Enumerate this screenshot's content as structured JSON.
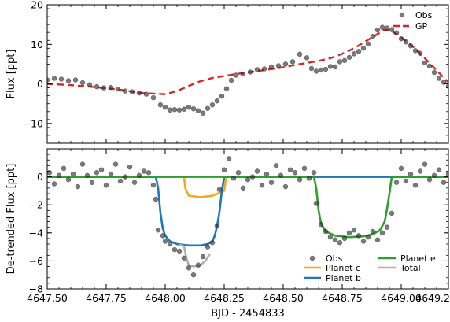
{
  "chart_data": [
    {
      "type": "scatter",
      "panel": "top",
      "title": "",
      "xlabel": "",
      "ylabel": "Flux [ppt]",
      "xlim": [
        4647.5,
        4649.2
      ],
      "ylim": [
        -15,
        20
      ],
      "yticks": [
        -10,
        0,
        10,
        20
      ],
      "ytick_labels": [
        "−10",
        "0",
        "10",
        "20"
      ],
      "legend": {
        "placement": "top-right",
        "entries": [
          "Obs",
          "GP"
        ]
      },
      "series": [
        {
          "name": "Obs",
          "kind": "points",
          "color": "#333333",
          "x": [
            4647.5,
            4647.53,
            4647.56,
            4647.59,
            4647.62,
            4647.65,
            4647.68,
            4647.71,
            4647.74,
            4647.77,
            4647.8,
            4647.83,
            4647.86,
            4647.89,
            4647.92,
            4647.95,
            4647.98,
            4648.0,
            4648.02,
            4648.04,
            4648.06,
            4648.08,
            4648.1,
            4648.12,
            4648.14,
            4648.16,
            4648.18,
            4648.2,
            4648.22,
            4648.24,
            4648.26,
            4648.28,
            4648.3,
            4648.33,
            4648.36,
            4648.39,
            4648.42,
            4648.45,
            4648.48,
            4648.51,
            4648.54,
            4648.57,
            4648.6,
            4648.62,
            4648.64,
            4648.66,
            4648.68,
            4648.7,
            4648.72,
            4648.74,
            4648.76,
            4648.78,
            4648.8,
            4648.82,
            4648.84,
            4648.86,
            4648.88,
            4648.9,
            4648.92,
            4648.94,
            4648.96,
            4648.98,
            4649.0,
            4649.02,
            4649.04,
            4649.06,
            4649.08,
            4649.1,
            4649.12,
            4649.14,
            4649.16,
            4649.18,
            4649.2
          ],
          "y": [
            1.0,
            1.4,
            1.2,
            0.8,
            1.0,
            0.3,
            -0.2,
            -0.7,
            -1.0,
            -0.9,
            -1.3,
            -1.8,
            -2.0,
            -2.3,
            -2.6,
            -3.5,
            -5.3,
            -5.9,
            -6.6,
            -6.5,
            -6.6,
            -6.4,
            -5.9,
            -6.3,
            -6.8,
            -7.4,
            -6.2,
            -5.3,
            -4.3,
            -3.1,
            -1.2,
            0.9,
            2.2,
            2.5,
            3.0,
            3.6,
            3.8,
            4.3,
            4.6,
            5.0,
            5.6,
            7.5,
            6.6,
            3.9,
            3.2,
            3.5,
            3.7,
            4.4,
            4.3,
            5.6,
            5.9,
            6.7,
            7.6,
            8.2,
            9.0,
            10.1,
            12.0,
            13.6,
            14.3,
            14.1,
            13.7,
            12.9,
            11.4,
            10.6,
            9.6,
            8.4,
            7.7,
            5.3,
            4.5,
            2.9,
            1.4,
            0.4,
            -0.6
          ]
        },
        {
          "name": "GP",
          "kind": "line",
          "color": "#d62728",
          "dashed": true,
          "x": [
            4647.5,
            4647.6,
            4647.7,
            4647.8,
            4647.9,
            4648.0,
            4648.05,
            4648.1,
            4648.15,
            4648.2,
            4648.25,
            4648.3,
            4648.4,
            4648.5,
            4648.55,
            4648.6,
            4648.65,
            4648.7,
            4648.75,
            4648.8,
            4648.85,
            4648.9,
            4648.93,
            4648.96,
            4649.0,
            4649.05,
            4649.1,
            4649.15,
            4649.2
          ],
          "y": [
            0.0,
            -0.3,
            -0.8,
            -1.4,
            -2.3,
            -2.6,
            -1.8,
            -0.5,
            0.7,
            1.5,
            2.0,
            2.5,
            3.3,
            4.2,
            4.8,
            5.3,
            5.8,
            6.5,
            7.6,
            9.0,
            10.8,
            12.6,
            13.7,
            13.3,
            11.7,
            9.4,
            6.5,
            3.4,
            0.4
          ]
        }
      ]
    },
    {
      "type": "scatter",
      "panel": "bottom",
      "title": "",
      "xlabel": "BJD - 2454833",
      "ylabel": "De-trended Flux [ppt]",
      "xlim": [
        4647.5,
        4649.2
      ],
      "ylim": [
        -8,
        2
      ],
      "yticks": [
        -8,
        -6,
        -4,
        -2,
        0
      ],
      "ytick_labels": [
        "−8",
        "−6",
        "−4",
        "−2",
        "0"
      ],
      "xticks": [
        4647.5,
        4647.75,
        4648.0,
        4648.25,
        4648.5,
        4648.75,
        4649.0,
        4649.2
      ],
      "xtick_labels": [
        "4647.50",
        "4647.75",
        "4648.00",
        "4648.25",
        "4648.50",
        "4648.75",
        "4649.00",
        "4649.2"
      ],
      "legend": {
        "placement": "lower-right",
        "ncol": 2,
        "entries": [
          "Obs",
          "Planet c",
          "Planet b",
          "Planet e",
          "Total"
        ]
      },
      "series": [
        {
          "name": "Obs",
          "kind": "points",
          "color": "#333333",
          "x": [
            4647.51,
            4647.53,
            4647.55,
            4647.57,
            4647.59,
            4647.61,
            4647.63,
            4647.65,
            4647.67,
            4647.69,
            4647.71,
            4647.73,
            4647.75,
            4647.77,
            4647.79,
            4647.81,
            4647.83,
            4647.85,
            4647.87,
            4647.89,
            4647.91,
            4647.93,
            4647.95,
            4647.96,
            4647.97,
            4647.99,
            4648.0,
            4648.02,
            4648.04,
            4648.06,
            4648.08,
            4648.1,
            4648.12,
            4648.14,
            4648.16,
            4648.18,
            4648.2,
            4648.22,
            4648.23,
            4648.25,
            4648.27,
            4648.29,
            4648.31,
            4648.33,
            4648.35,
            4648.37,
            4648.39,
            4648.41,
            4648.43,
            4648.45,
            4648.47,
            4648.49,
            4648.51,
            4648.53,
            4648.55,
            4648.57,
            4648.59,
            4648.61,
            4648.63,
            4648.64,
            4648.66,
            4648.68,
            4648.7,
            4648.72,
            4648.74,
            4648.76,
            4648.78,
            4648.8,
            4648.82,
            4648.84,
            4648.86,
            4648.88,
            4648.9,
            4648.92,
            4648.94,
            4648.96,
            4648.98,
            4649.0,
            4649.02,
            4649.04,
            4649.06,
            4649.08,
            4649.1,
            4649.12,
            4649.14,
            4649.16,
            4649.18,
            4649.2
          ],
          "y": [
            0.3,
            -0.5,
            0.1,
            0.6,
            -0.2,
            0.2,
            -0.7,
            0.9,
            0.1,
            -0.4,
            0.3,
            0.5,
            -0.6,
            0.2,
            0.9,
            -0.3,
            0.0,
            0.7,
            -0.4,
            0.1,
            0.4,
            0.3,
            -0.6,
            -1.6,
            -3.8,
            -4.2,
            -4.6,
            -4.8,
            -5.2,
            -5.3,
            -5.8,
            -6.5,
            -7.0,
            -6.3,
            -5.7,
            -5.0,
            -4.7,
            -3.5,
            -0.9,
            0.5,
            1.3,
            -0.1,
            0.3,
            -0.8,
            -0.2,
            0.0,
            0.4,
            -0.6,
            0.2,
            -0.4,
            0.8,
            0.1,
            -0.7,
            0.5,
            0.3,
            -0.2,
            0.6,
            -0.1,
            0.3,
            -1.9,
            -3.4,
            -3.9,
            -4.3,
            -4.5,
            -4.7,
            -4.4,
            -4.0,
            -3.8,
            -4.2,
            -4.6,
            -4.3,
            -3.9,
            -4.5,
            -4.0,
            -3.6,
            -2.6,
            -0.4,
            0.6,
            -0.3,
            0.2,
            -0.6,
            0.4,
            0.9,
            -0.2,
            0.1,
            0.5,
            -0.4,
            0.2
          ]
        },
        {
          "name": "Planet c",
          "kind": "line",
          "color": "#f5a623",
          "x": [
            4647.5,
            4648.08,
            4648.085,
            4648.1,
            4648.15,
            4648.2,
            4648.25,
            4648.255,
            4648.26,
            4649.2
          ],
          "y": [
            0,
            0,
            -0.8,
            -1.35,
            -1.45,
            -1.35,
            -1.0,
            -0.4,
            0,
            0
          ]
        },
        {
          "name": "Planet b",
          "kind": "line",
          "color": "#1f77b4",
          "x": [
            4647.5,
            4647.96,
            4647.97,
            4647.98,
            4647.99,
            4648.0,
            4648.02,
            4648.05,
            4648.1,
            4648.15,
            4648.18,
            4648.2,
            4648.21,
            4648.22,
            4648.23,
            4648.24,
            4648.25,
            4649.2
          ],
          "y": [
            0,
            0,
            -0.8,
            -2.6,
            -3.7,
            -4.2,
            -4.6,
            -4.8,
            -4.9,
            -4.9,
            -4.8,
            -4.6,
            -4.2,
            -3.5,
            -2.5,
            -1.0,
            0,
            0
          ]
        },
        {
          "name": "Planet e",
          "kind": "line",
          "color": "#2ca02c",
          "x": [
            4647.5,
            4648.63,
            4648.64,
            4648.65,
            4648.66,
            4648.68,
            4648.72,
            4648.78,
            4648.84,
            4648.88,
            4648.91,
            4648.93,
            4648.94,
            4648.95,
            4648.96,
            4649.2
          ],
          "y": [
            0,
            0,
            -0.8,
            -2.4,
            -3.3,
            -3.9,
            -4.2,
            -4.3,
            -4.25,
            -4.1,
            -3.8,
            -3.2,
            -2.3,
            -1.2,
            0,
            0
          ]
        },
        {
          "name": "Total",
          "kind": "line",
          "color": "#b0b0b0",
          "x": [
            4648.06,
            4648.08,
            4648.09,
            4648.1,
            4648.12,
            4648.15,
            4648.17,
            4648.19
          ],
          "y": [
            -4.85,
            -4.95,
            -5.8,
            -6.3,
            -6.4,
            -6.3,
            -6.0,
            -5.5
          ]
        }
      ]
    }
  ]
}
